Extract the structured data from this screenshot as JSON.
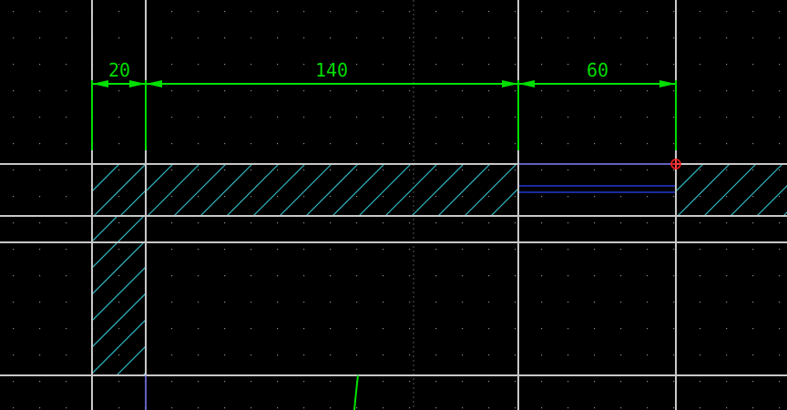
{
  "drawing": {
    "background_color": "#000000",
    "grid_dot_color": "#8a8a8a",
    "wall_line_color": "#c8c8c8",
    "hatch_color": "#2fb8c4",
    "dimension_color": "#00e000",
    "opening_line_color": "#8080ff",
    "opening_band_color": "#1a2aa0",
    "snap_marker_color": "#ff2020",
    "dimensions": [
      {
        "id": "dim-20",
        "label": "20"
      },
      {
        "id": "dim-140",
        "label": "140"
      },
      {
        "id": "dim-60",
        "label": "60"
      }
    ]
  }
}
